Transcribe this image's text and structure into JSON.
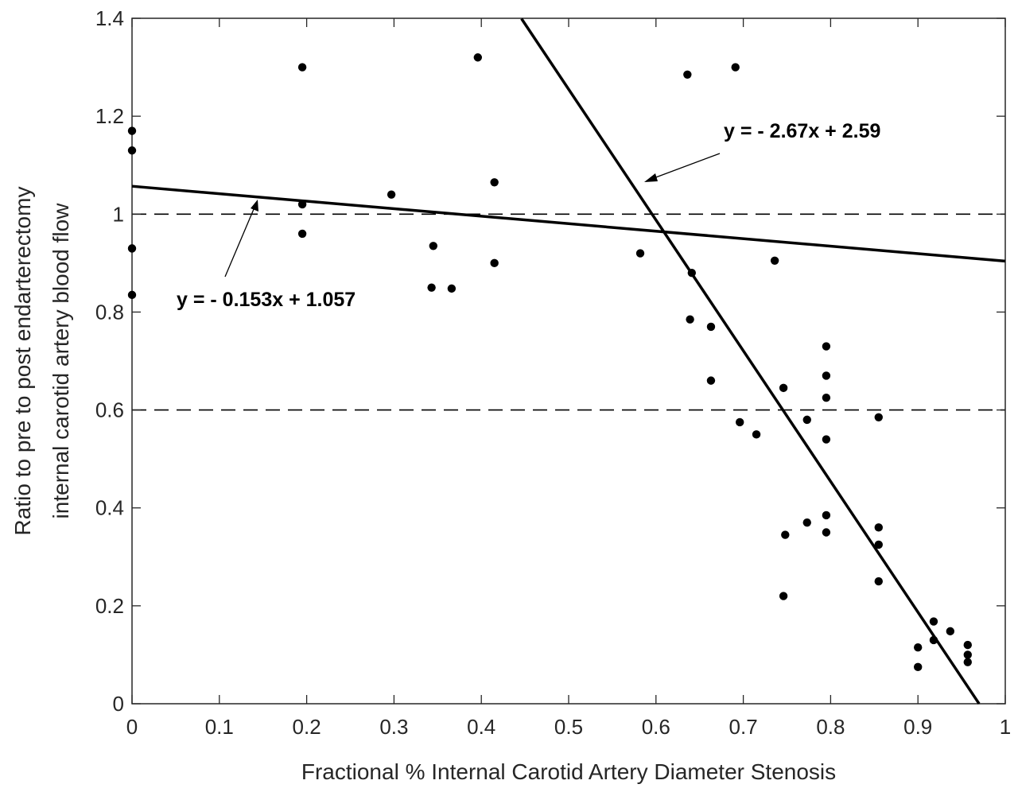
{
  "chart_data": {
    "type": "scatter",
    "title": "",
    "xlabel": "Fractional % Internal Carotid Artery Diameter Stenosis",
    "ylabel_lines": [
      "Ratio to pre to post endarterectomy",
      "internal carotid artery blood flow"
    ],
    "xlim": [
      0,
      1
    ],
    "ylim": [
      0,
      1.4
    ],
    "x_ticks": [
      0,
      0.1,
      0.2,
      0.3,
      0.4,
      0.5,
      0.6,
      0.7,
      0.8,
      0.9,
      1
    ],
    "x_tick_labels": [
      "0",
      "0.1",
      "0.2",
      "0.3",
      "0.4",
      "0.5",
      "0.6",
      "0.7",
      "0.8",
      "0.9",
      "1"
    ],
    "y_ticks": [
      0,
      0.2,
      0.4,
      0.6,
      0.8,
      1,
      1.2,
      1.4
    ],
    "y_tick_labels": [
      "0",
      "0.2",
      "0.4",
      "0.6",
      "0.8",
      "1",
      "1.2",
      "1.4"
    ],
    "grid": false,
    "reference_lines": [
      {
        "y": 1.0,
        "style": "dashed"
      },
      {
        "y": 0.6,
        "style": "dashed"
      }
    ],
    "points": [
      {
        "x": 0.0,
        "y": 1.17
      },
      {
        "x": 0.0,
        "y": 1.13
      },
      {
        "x": 0.0,
        "y": 0.93
      },
      {
        "x": 0.0,
        "y": 0.835
      },
      {
        "x": 0.195,
        "y": 1.3
      },
      {
        "x": 0.195,
        "y": 1.02
      },
      {
        "x": 0.195,
        "y": 0.96
      },
      {
        "x": 0.297,
        "y": 1.04
      },
      {
        "x": 0.345,
        "y": 0.935
      },
      {
        "x": 0.343,
        "y": 0.85
      },
      {
        "x": 0.366,
        "y": 0.848
      },
      {
        "x": 0.396,
        "y": 1.32
      },
      {
        "x": 0.415,
        "y": 1.065
      },
      {
        "x": 0.415,
        "y": 0.9
      },
      {
        "x": 0.582,
        "y": 0.92
      },
      {
        "x": 0.636,
        "y": 1.285
      },
      {
        "x": 0.641,
        "y": 0.88
      },
      {
        "x": 0.639,
        "y": 0.785
      },
      {
        "x": 0.663,
        "y": 0.77
      },
      {
        "x": 0.663,
        "y": 0.66
      },
      {
        "x": 0.691,
        "y": 1.3
      },
      {
        "x": 0.696,
        "y": 0.575
      },
      {
        "x": 0.715,
        "y": 0.55
      },
      {
        "x": 0.736,
        "y": 0.905
      },
      {
        "x": 0.746,
        "y": 0.645
      },
      {
        "x": 0.748,
        "y": 0.345
      },
      {
        "x": 0.746,
        "y": 0.22
      },
      {
        "x": 0.773,
        "y": 0.58
      },
      {
        "x": 0.773,
        "y": 0.37
      },
      {
        "x": 0.795,
        "y": 0.73
      },
      {
        "x": 0.795,
        "y": 0.67
      },
      {
        "x": 0.795,
        "y": 0.625
      },
      {
        "x": 0.795,
        "y": 0.54
      },
      {
        "x": 0.795,
        "y": 0.385
      },
      {
        "x": 0.795,
        "y": 0.35
      },
      {
        "x": 0.855,
        "y": 0.585
      },
      {
        "x": 0.855,
        "y": 0.36
      },
      {
        "x": 0.855,
        "y": 0.325
      },
      {
        "x": 0.855,
        "y": 0.25
      },
      {
        "x": 0.9,
        "y": 0.115
      },
      {
        "x": 0.9,
        "y": 0.075
      },
      {
        "x": 0.918,
        "y": 0.168
      },
      {
        "x": 0.918,
        "y": 0.13
      },
      {
        "x": 0.937,
        "y": 0.148
      },
      {
        "x": 0.957,
        "y": 0.12
      },
      {
        "x": 0.957,
        "y": 0.1
      },
      {
        "x": 0.957,
        "y": 0.085
      }
    ],
    "fit_lines": [
      {
        "equation": "y = - 0.153x + 1.057",
        "slope": -0.153,
        "intercept": 1.057,
        "x_range": [
          0,
          1
        ]
      },
      {
        "equation": "y = - 2.67x + 2.59",
        "slope": -2.67,
        "intercept": 2.59,
        "x_range": [
          0.446,
          0.97
        ]
      }
    ]
  }
}
